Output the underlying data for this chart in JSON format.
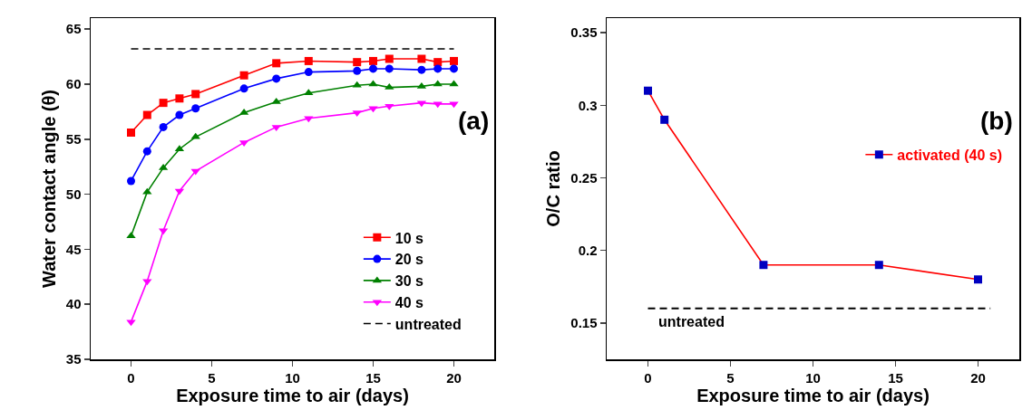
{
  "chart_data": [
    {
      "type": "line",
      "xlabel": "Exposure time to air (days)",
      "ylabel": "Water contact angle (θ)",
      "xlim": [
        -2.5,
        22.5
      ],
      "xticks": [
        0,
        5,
        10,
        15,
        20
      ],
      "ylim": [
        35,
        66
      ],
      "yticks": [
        35,
        40,
        45,
        50,
        55,
        60,
        65
      ],
      "grid": false,
      "legend": "bottom right",
      "annotations": [
        "(a)"
      ],
      "x": [
        0,
        1,
        2,
        3,
        4,
        7,
        9,
        11,
        14,
        15,
        16,
        18,
        19,
        20
      ],
      "series": [
        {
          "name": "10 s",
          "color": "#ff0000",
          "marker": "square",
          "values": [
            55.6,
            57.2,
            58.3,
            58.7,
            59.1,
            60.8,
            61.9,
            62.1,
            62.0,
            62.1,
            62.3,
            62.3,
            62.0,
            62.1
          ]
        },
        {
          "name": "20 s",
          "color": "#0000ff",
          "marker": "circle",
          "values": [
            51.2,
            53.9,
            56.1,
            57.2,
            57.8,
            59.6,
            60.5,
            61.1,
            61.2,
            61.4,
            61.4,
            61.3,
            61.4,
            61.4
          ]
        },
        {
          "name": "30 s",
          "color": "#008000",
          "marker": "triangle",
          "values": [
            46.2,
            50.2,
            52.4,
            54.1,
            55.2,
            57.4,
            58.4,
            59.2,
            59.9,
            60.0,
            59.7,
            59.8,
            60.0,
            60.0
          ]
        },
        {
          "name": "40 s",
          "color": "#ff00ff",
          "marker": "triangle-down",
          "values": [
            38.4,
            42.1,
            46.7,
            50.3,
            52.1,
            54.7,
            56.1,
            56.9,
            57.4,
            57.8,
            58.0,
            58.3,
            58.2,
            58.2
          ]
        },
        {
          "name": "untreated",
          "color": "#000000",
          "marker": "none",
          "line_style": "dashed",
          "x": [
            0,
            20
          ],
          "values": [
            63.2,
            63.2
          ]
        }
      ]
    },
    {
      "type": "line",
      "xlabel": "Exposure time to air (days)",
      "ylabel": "O/C ratio",
      "xlim": [
        -2.5,
        22.5
      ],
      "xticks": [
        0,
        5,
        10,
        15,
        20
      ],
      "ylim": [
        0.125,
        0.36
      ],
      "yticks": [
        0.15,
        0.2,
        0.25,
        0.3,
        0.35
      ],
      "grid": false,
      "legend": "right",
      "annotations": [
        "(b)"
      ],
      "x": [
        0,
        1,
        7,
        14,
        20
      ],
      "series": [
        {
          "name": "activated (40 s)",
          "color": "#ff0000",
          "colors": [
            "#0000c0",
            "#0000c0",
            "#0000c0",
            "#0000c0",
            "#0000c0"
          ],
          "marker": "square",
          "values": [
            0.31,
            0.29,
            0.19,
            0.19,
            0.18
          ]
        }
      ],
      "ref_lines": [
        {
          "axis": "y",
          "value": 0.16,
          "label": "untreated",
          "color": "#000000",
          "line_style": "dashed"
        }
      ]
    }
  ]
}
